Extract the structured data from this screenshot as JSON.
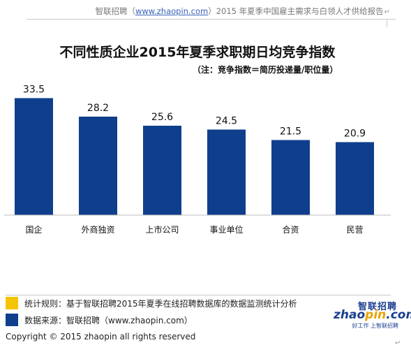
{
  "header": {
    "org": "智联招聘",
    "paren_open": "（",
    "site": "www.zhaopin.com",
    "paren_close": "）",
    "report": "2015 年夏季中国雇主需求与白领人才供给报告",
    "return_mark": "↵"
  },
  "chart_data": {
    "type": "bar",
    "title": "不同性质企业2015年夏季求职期日均竞争指数",
    "subtitle": "（注：竞争指数＝简历投递量/职位量）",
    "categories": [
      "国企",
      "外商独资",
      "上市公司",
      "事业单位",
      "合资",
      "民营"
    ],
    "values": [
      33.5,
      28.2,
      25.6,
      24.5,
      21.5,
      20.9
    ],
    "value_labels": [
      "33.5",
      "28.2",
      "25.6",
      "24.5",
      "21.5",
      "20.9"
    ],
    "bar_color": "#0f3f8c",
    "ylim": [
      0,
      40
    ],
    "grid": false,
    "xlabel": "",
    "ylabel": ""
  },
  "legend": {
    "rule_label": "统计规则：基于智联招聘2015年夏季在线招聘数据库的数据监测统计分析",
    "rule_color": "#f5c400",
    "source_label": "数据来源：智联招聘（www.zhaopin.com）",
    "source_color": "#0f3f8c"
  },
  "logo": {
    "brand_cn": "智联招聘",
    "brand_a": "zhao",
    "brand_b": "pin",
    "brand_c": ".com",
    "tagline": "好工作 上智联招聘"
  },
  "footer": {
    "copyright": "Copyright   ©   2015 zhaopin all rights reserved",
    "return_mark": "↵"
  }
}
